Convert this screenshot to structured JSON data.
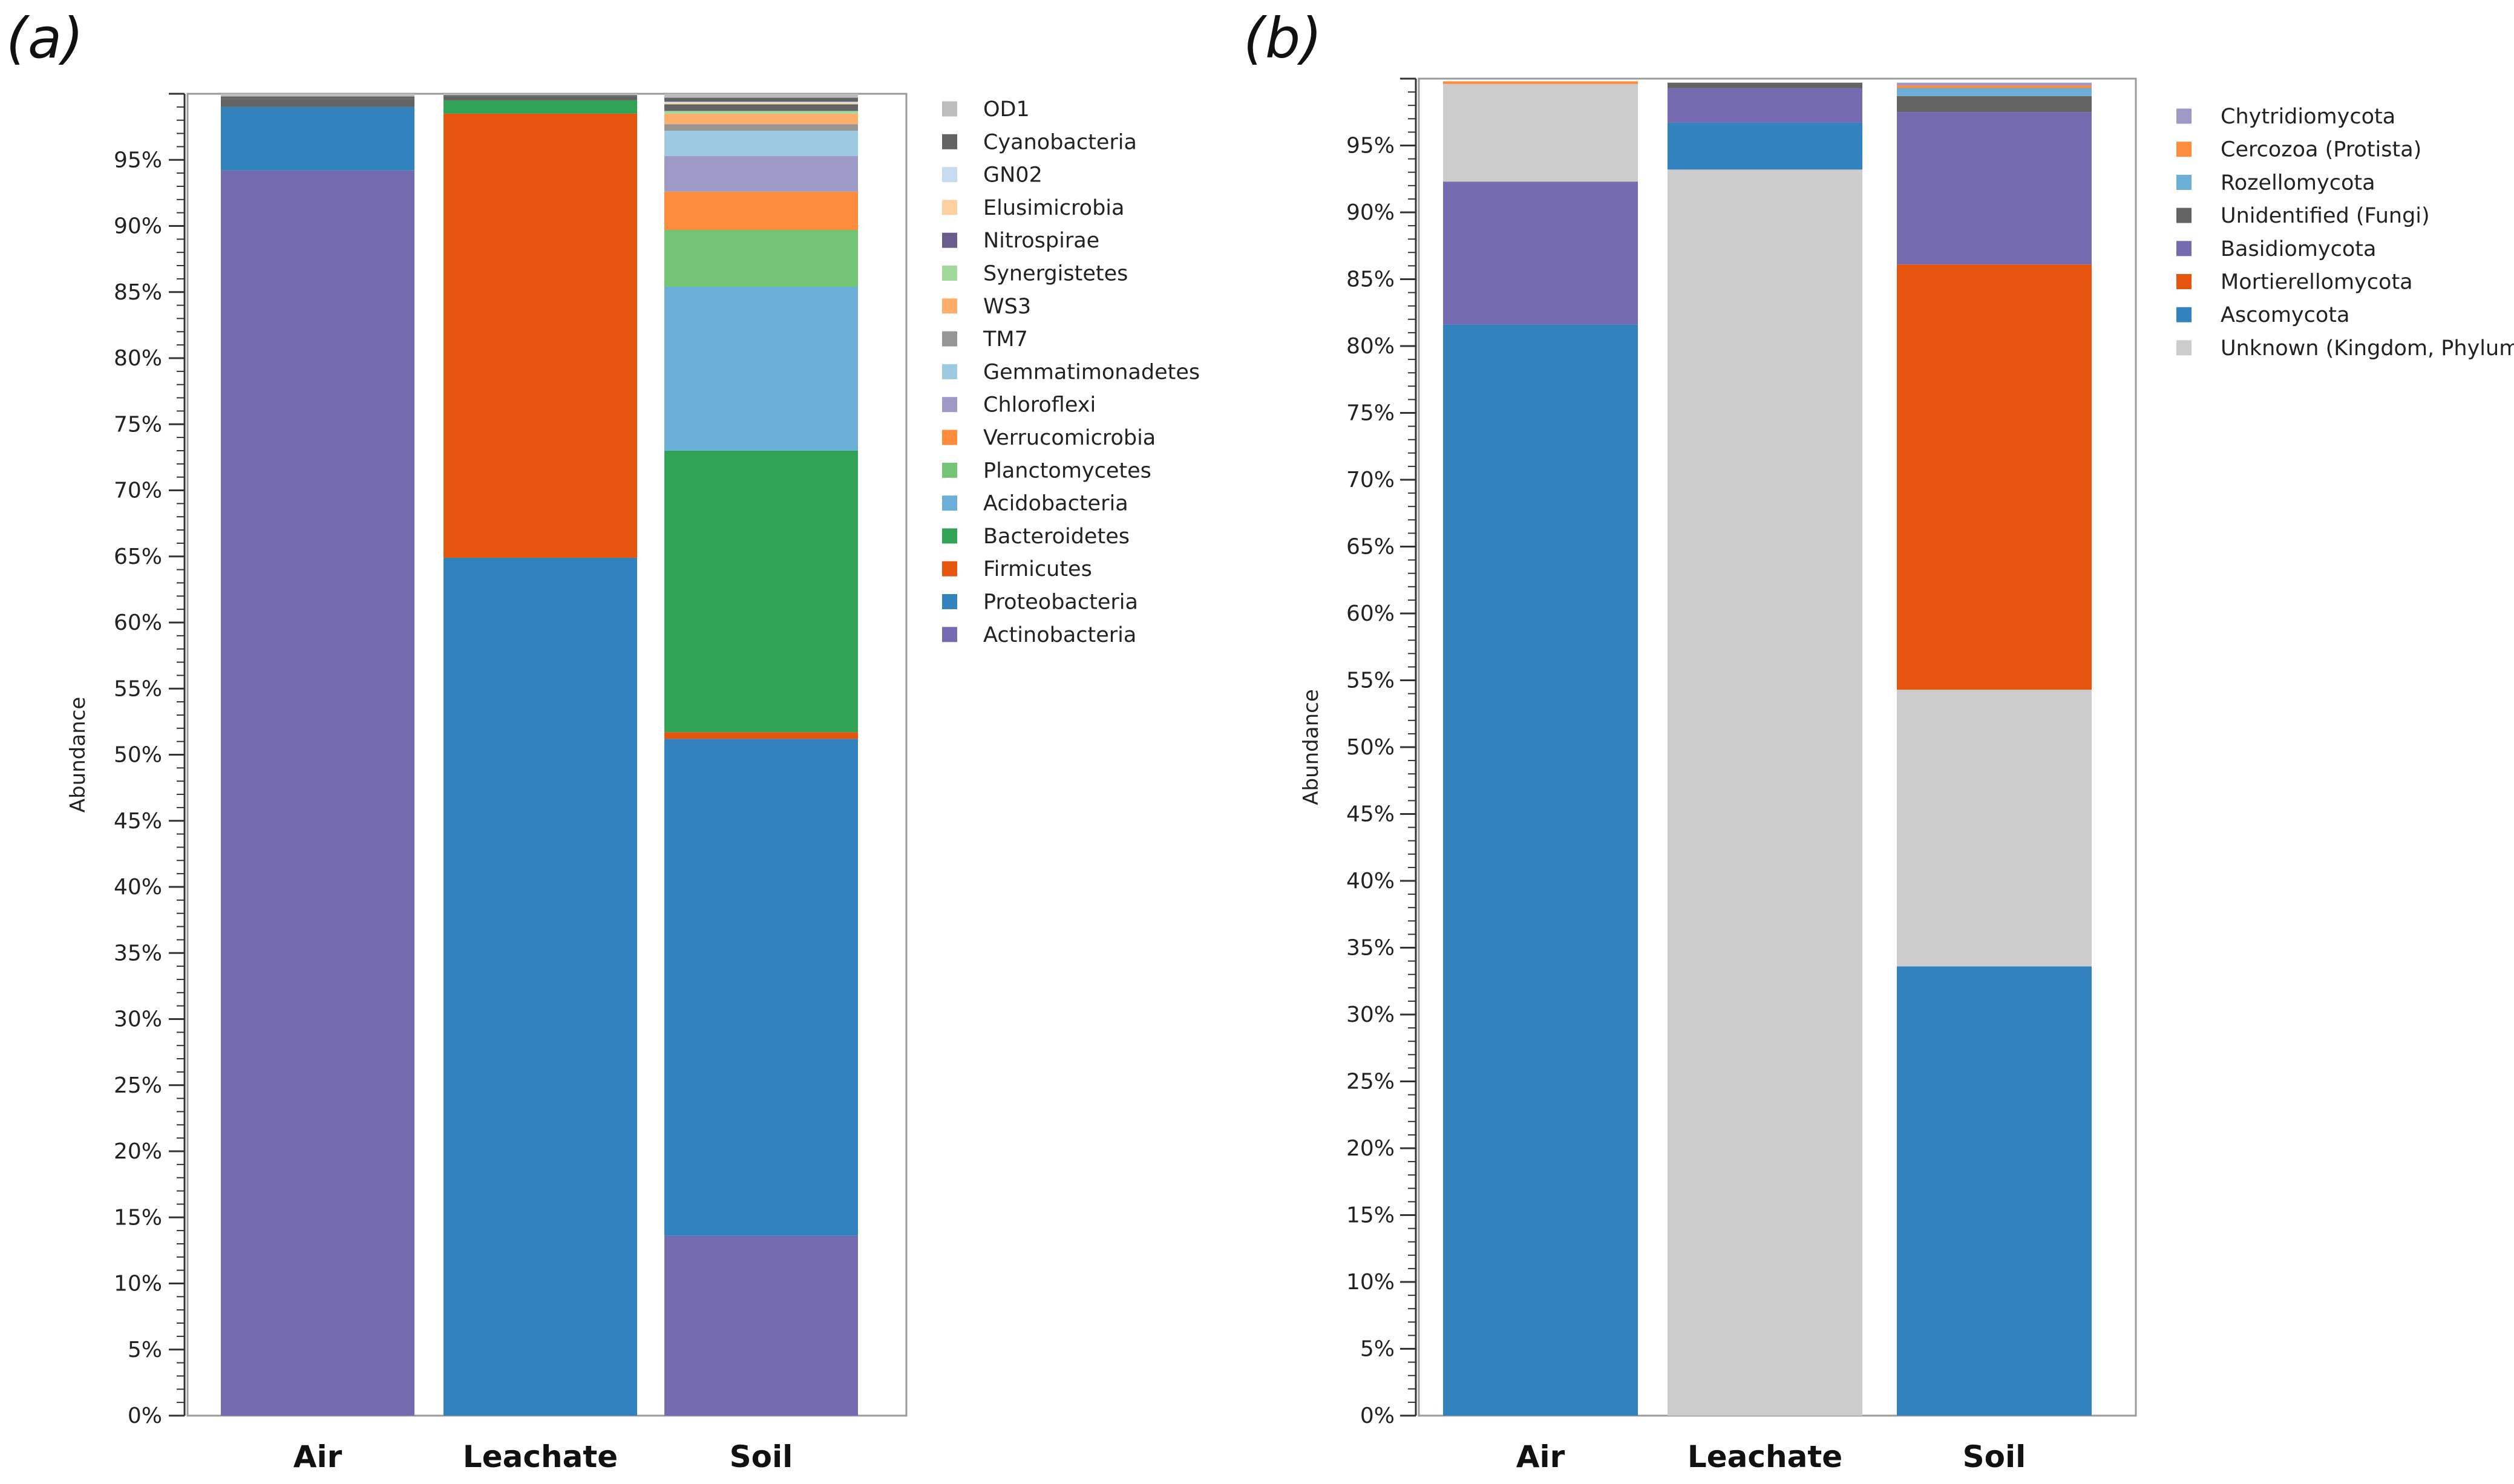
{
  "panels": [
    {
      "label": "(a)"
    },
    {
      "label": "(b)"
    }
  ],
  "chart_data": [
    {
      "type": "bar",
      "stacked": true,
      "ylabel": "Abundance",
      "xlabel": "",
      "ylim": [
        0,
        100
      ],
      "yticks_step": 5,
      "tick_suffix": "%",
      "grid": false,
      "legend_position": "right",
      "categories": [
        "Air",
        "Leachate",
        "Soil"
      ],
      "series": [
        {
          "name": "Actinobacteria",
          "color": "#756bb1",
          "values": [
            94.2,
            0.0,
            13.6
          ]
        },
        {
          "name": "Proteobacteria",
          "color": "#3182bd",
          "values": [
            4.8,
            64.9,
            37.6
          ]
        },
        {
          "name": "Firmicutes",
          "color": "#e6550d",
          "values": [
            0.0,
            33.6,
            0.5
          ]
        },
        {
          "name": "Bacteroidetes",
          "color": "#31a354",
          "values": [
            0.0,
            1.0,
            21.3
          ]
        },
        {
          "name": "Acidobacteria",
          "color": "#6baed6",
          "values": [
            0.0,
            0.0,
            12.4
          ]
        },
        {
          "name": "Planctomycetes",
          "color": "#74c476",
          "values": [
            0.0,
            0.0,
            4.3
          ]
        },
        {
          "name": "Verrucomicrobia",
          "color": "#fd8d3c",
          "values": [
            0.0,
            0.0,
            2.9
          ]
        },
        {
          "name": "Chloroflexi",
          "color": "#9e9ac8",
          "values": [
            0.0,
            0.0,
            2.7
          ]
        },
        {
          "name": "Gemmatimonadetes",
          "color": "#9ecae1",
          "values": [
            0.0,
            0.0,
            1.9
          ]
        },
        {
          "name": "TM7",
          "color": "#969696",
          "values": [
            0.0,
            0.0,
            0.5
          ]
        },
        {
          "name": "WS3",
          "color": "#fdae6b",
          "values": [
            0.0,
            0.0,
            0.8
          ]
        },
        {
          "name": "Synergistetes",
          "color": "#a1d99b",
          "values": [
            0.0,
            0.0,
            0.2
          ]
        },
        {
          "name": "Nitrospirae",
          "color": "#636363",
          "values": [
            0.6,
            0.3,
            0.5
          ]
        },
        {
          "name": "Elusimicrobia",
          "color": "#fdd0a2",
          "values": [
            0.0,
            0.0,
            0.1
          ]
        },
        {
          "name": "GN02",
          "color": "#c6dbef",
          "values": [
            0.0,
            0.0,
            0.1
          ]
        },
        {
          "name": "Cyanobacteria",
          "color": "#636363",
          "values": [
            0.2,
            0.1,
            0.3
          ]
        },
        {
          "name": "OD1",
          "color": "#bdbdbd",
          "values": [
            0.2,
            0.1,
            0.3
          ]
        }
      ],
      "legend_order": [
        "OD1",
        "Cyanobacteria",
        "GN02",
        "Elusimicrobia",
        "Nitrospirae",
        "Synergistetes",
        "WS3",
        "TM7",
        "Gemmatimonadetes",
        "Chloroflexi",
        "Verrucomicrobia",
        "Planctomycetes",
        "Acidobacteria",
        "Bacteroidetes",
        "Firmicutes",
        "Proteobacteria",
        "Actinobacteria"
      ],
      "legend_colors": {
        "Nitrospirae": "#6a5d8e"
      }
    },
    {
      "type": "bar",
      "stacked": true,
      "ylabel": "Abundance",
      "xlabel": "",
      "ylim": [
        0,
        100
      ],
      "yticks_step": 5,
      "tick_suffix": "%",
      "grid": false,
      "legend_position": "right",
      "categories": [
        "Air",
        "Leachate",
        "Soil"
      ],
      "series": [
        {
          "name": "Ascomycota",
          "color": "#3182bd",
          "values": [
            81.6,
            0.0,
            33.6
          ]
        },
        {
          "name": "Unknown (Kingdom, Phylum)",
          "color": "#cccccc",
          "values": [
            0.0,
            93.2,
            20.7
          ]
        },
        {
          "name": "Basidiomycota",
          "color": "#756bb1",
          "values": [
            10.7,
            0.0,
            0.0
          ]
        },
        {
          "name": "Unknown (Kingdom, Phylum)",
          "color": "#cccccc",
          "values": [
            7.3,
            0.0,
            0.0
          ]
        },
        {
          "name": "Ascomycota",
          "color": "#3182bd",
          "values": [
            0.0,
            3.5,
            0.0
          ]
        },
        {
          "name": "Basidiomycota",
          "color": "#756bb1",
          "values": [
            0.0,
            2.6,
            0.0
          ]
        },
        {
          "name": "Mortierellomycota",
          "color": "#e6550d",
          "values": [
            0.0,
            0.0,
            31.8
          ]
        },
        {
          "name": "Basidiomycota",
          "color": "#756bb1",
          "values": [
            0.0,
            0.0,
            11.4
          ]
        },
        {
          "name": "Unidentified (Fungi)",
          "color": "#636363",
          "values": [
            0.0,
            0.4,
            1.2
          ]
        },
        {
          "name": "Rozellomycota",
          "color": "#6baed6",
          "values": [
            0.0,
            0.0,
            0.6
          ]
        },
        {
          "name": "Cercozoa (Protista)",
          "color": "#fd8d3c",
          "values": [
            0.2,
            0.0,
            0.2
          ]
        },
        {
          "name": "Chytridiomycota",
          "color": "#9e9ac8",
          "values": [
            0.0,
            0.0,
            0.2
          ]
        }
      ],
      "legend_order": [
        "Chytridiomycota",
        "Cercozoa (Protista)",
        "Rozellomycota",
        "Unidentified (Fungi)",
        "Basidiomycota",
        "Mortierellomycota",
        "Ascomycota",
        "Unknown (Kingdom, Phylum)"
      ]
    }
  ]
}
